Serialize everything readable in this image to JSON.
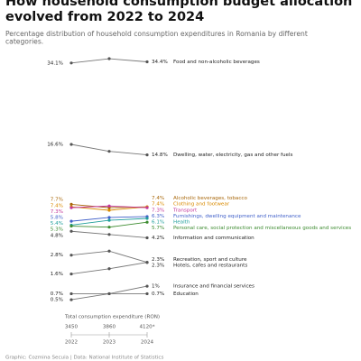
{
  "title": "How household consumption budget allocation evolved from 2022 to 2024",
  "subtitle": "Percentage distribution of household consumption expenditures in Romania by different categories.",
  "footer": "Graphic: Cozmina Secuia | Data: National Institute of Statistics",
  "chart_data": {
    "type": "slope",
    "y_scale": "sqrt",
    "ylim": [
      0,
      36
    ],
    "categories": [
      "2022",
      "2023",
      "2024"
    ],
    "series": [
      {
        "name": "Food and non-alcoholic beverages",
        "color": "#222222",
        "values": [
          34.1,
          35.2,
          34.4
        ],
        "value_labels": [
          "34.1%",
          null,
          "34.4%"
        ]
      },
      {
        "name": "Dwelling, water, electricity, gas and other fuels",
        "color": "#222222",
        "values": [
          16.6,
          15.4,
          14.8
        ],
        "value_labels": [
          "16.6%",
          null,
          "14.8%"
        ]
      },
      {
        "name": "Alcoholic beverages, tobacco",
        "color": "#a8670a",
        "values": [
          7.7,
          7.3,
          7.4
        ],
        "value_labels": [
          "7.7%",
          null,
          "7.4%"
        ]
      },
      {
        "name": "Clothing and footwear",
        "color": "#d98a00",
        "values": [
          7.4,
          7.0,
          7.4
        ],
        "value_labels": [
          "7.4%",
          null,
          "7.4%"
        ]
      },
      {
        "name": "Transport",
        "color": "#c2379a",
        "values": [
          7.3,
          7.5,
          7.3
        ],
        "value_labels": [
          "7.3%",
          null,
          "7.3%"
        ]
      },
      {
        "name": "Furnishings, dwelling equipment and maintenance",
        "color": "#3f5fc9",
        "values": [
          5.8,
          6.2,
          6.3
        ],
        "value_labels": [
          "5.8%",
          null,
          "6.3%"
        ]
      },
      {
        "name": "Health",
        "color": "#1f9e9a",
        "values": [
          5.4,
          5.9,
          6.1
        ],
        "value_labels": [
          "5.4%",
          null,
          "6.1%"
        ]
      },
      {
        "name": "Personal care, social protection and miscellaneous goods and services",
        "color": "#3c8b2f",
        "values": [
          5.3,
          5.2,
          5.7
        ],
        "value_labels": [
          "5.3%",
          null,
          "5.7%"
        ]
      },
      {
        "name": "Information and communication",
        "color": "#222222",
        "values": [
          4.8,
          4.5,
          4.2
        ],
        "value_labels": [
          "4.8%",
          null,
          "4.2%"
        ]
      },
      {
        "name": "Recreation, sport and culture",
        "color": "#222222",
        "values": [
          2.8,
          3.1,
          2.3
        ],
        "value_labels": [
          "2.8%",
          null,
          "2.3%"
        ]
      },
      {
        "name": "Hotels, cafes and restaurants",
        "color": "#222222",
        "values": [
          1.6,
          1.9,
          2.3
        ],
        "value_labels": [
          "1.6%",
          null,
          "2.3%"
        ]
      },
      {
        "name": "Insurance and financial services",
        "color": "#222222",
        "values": [
          0.7,
          0.7,
          1
        ],
        "value_labels": [
          "0.7%",
          null,
          "1%"
        ]
      },
      {
        "name": "Education",
        "color": "#222222",
        "values": [
          0.5,
          0.7,
          0.7
        ],
        "value_labels": [
          "0.5%",
          null,
          "0.7%"
        ]
      }
    ],
    "totals": {
      "title": "Total consumption expenditure (RON)",
      "values": [
        3450,
        3860,
        4120
      ],
      "value_labels": [
        "3450",
        "3860",
        "4120*"
      ]
    }
  }
}
